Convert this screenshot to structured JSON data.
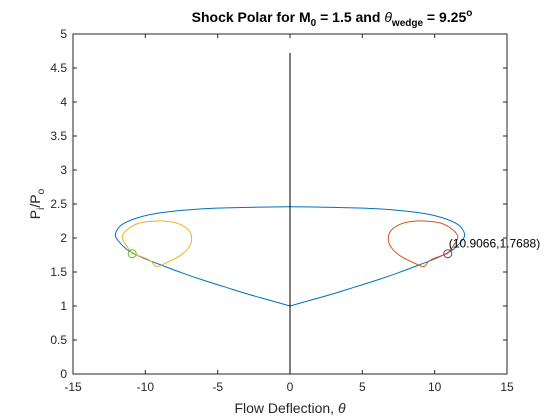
{
  "chart_data": {
    "type": "line",
    "title": {
      "prefix": "Shock Polar for M",
      "sub1": "0",
      "middle": " = 1.5 and ",
      "theta": "θ",
      "sub2": "wedge",
      "suffix": " = 9.25",
      "sup": "o"
    },
    "xlabel": {
      "text": "Flow Deflection, ",
      "symbol": "θ"
    },
    "ylabel": {
      "main1": "P",
      "sub1": "i",
      "main2": "/P",
      "sub2": "o"
    },
    "xlim": [
      -15,
      15
    ],
    "ylim": [
      0,
      5
    ],
    "xticks": [
      -15,
      -10,
      -5,
      0,
      5,
      10,
      15
    ],
    "xtick_labels": [
      "-15",
      "-10",
      "-5",
      "0",
      "5",
      "10",
      "15"
    ],
    "yticks": [
      0,
      0.5,
      1,
      1.5,
      2,
      2.5,
      3,
      3.5,
      4,
      4.5,
      5
    ],
    "ytick_labels": [
      "0",
      "0.5",
      "1",
      "1.5",
      "2",
      "2.5",
      "3",
      "3.5",
      "4",
      "4.5",
      "5"
    ],
    "grid": false,
    "colors": {
      "primary_polar": "#0072BD",
      "reflected_right": "#D95319",
      "reflected_left": "#EDB120",
      "vertical_line": "#000000",
      "marker_left": "#77AC30",
      "marker_right": "#7E2F8E"
    },
    "series": [
      {
        "key": "primary_polar",
        "points": [
          [
            0,
            1.0
          ],
          [
            1.5,
            1.09
          ],
          [
            3,
            1.18
          ],
          [
            4.5,
            1.28
          ],
          [
            6,
            1.38
          ],
          [
            7.5,
            1.49
          ],
          [
            9,
            1.61
          ],
          [
            10.2,
            1.71
          ],
          [
            11.2,
            1.82
          ],
          [
            11.8,
            1.94
          ],
          [
            12.05,
            2.02
          ],
          [
            12.0,
            2.1
          ],
          [
            11.6,
            2.2
          ],
          [
            10.5,
            2.3
          ],
          [
            9,
            2.37
          ],
          [
            6,
            2.43
          ],
          [
            3,
            2.45
          ],
          [
            0,
            2.46
          ],
          [
            -3,
            2.45
          ],
          [
            -6,
            2.43
          ],
          [
            -9,
            2.37
          ],
          [
            -10.5,
            2.3
          ],
          [
            -11.6,
            2.2
          ],
          [
            -12.0,
            2.1
          ],
          [
            -12.05,
            2.02
          ],
          [
            -11.8,
            1.94
          ],
          [
            -11.2,
            1.82
          ],
          [
            -10.2,
            1.71
          ],
          [
            -9,
            1.61
          ],
          [
            -7.5,
            1.49
          ],
          [
            -6,
            1.38
          ],
          [
            -4.5,
            1.28
          ],
          [
            -3,
            1.18
          ],
          [
            -1.5,
            1.09
          ],
          [
            0,
            1.0
          ]
        ]
      },
      {
        "key": "reflected_right",
        "points": [
          [
            10.9,
            1.77
          ],
          [
            10.2,
            1.72
          ],
          [
            9.6,
            1.66
          ],
          [
            9.25,
            1.58
          ],
          [
            8.6,
            1.63
          ],
          [
            7.6,
            1.74
          ],
          [
            7.0,
            1.86
          ],
          [
            6.8,
            1.98
          ],
          [
            6.95,
            2.1
          ],
          [
            7.5,
            2.19
          ],
          [
            8.3,
            2.24
          ],
          [
            9.25,
            2.25
          ],
          [
            10.4,
            2.22
          ],
          [
            11.2,
            2.13
          ],
          [
            11.6,
            2.02
          ],
          [
            11.4,
            1.92
          ],
          [
            10.9,
            1.77
          ]
        ]
      },
      {
        "key": "reflected_left",
        "points": [
          [
            -10.9,
            1.77
          ],
          [
            -10.2,
            1.72
          ],
          [
            -9.6,
            1.66
          ],
          [
            -9.25,
            1.58
          ],
          [
            -8.6,
            1.63
          ],
          [
            -7.6,
            1.74
          ],
          [
            -7.0,
            1.86
          ],
          [
            -6.8,
            1.98
          ],
          [
            -6.95,
            2.1
          ],
          [
            -7.5,
            2.19
          ],
          [
            -8.3,
            2.24
          ],
          [
            -9.25,
            2.25
          ],
          [
            -10.4,
            2.22
          ],
          [
            -11.2,
            2.13
          ],
          [
            -11.6,
            2.02
          ],
          [
            -11.4,
            1.92
          ],
          [
            -10.9,
            1.77
          ]
        ]
      },
      {
        "key": "vertical_line",
        "points": [
          [
            0,
            0
          ],
          [
            0,
            4.72
          ]
        ]
      }
    ],
    "markers": [
      {
        "key": "marker_left",
        "x": -10.9066,
        "y": 1.7688
      },
      {
        "key": "marker_right",
        "x": 10.9066,
        "y": 1.7688
      }
    ],
    "annotation": {
      "text": "(10.9066,1.7688)",
      "x": 10.9066,
      "y": 1.7688
    }
  }
}
